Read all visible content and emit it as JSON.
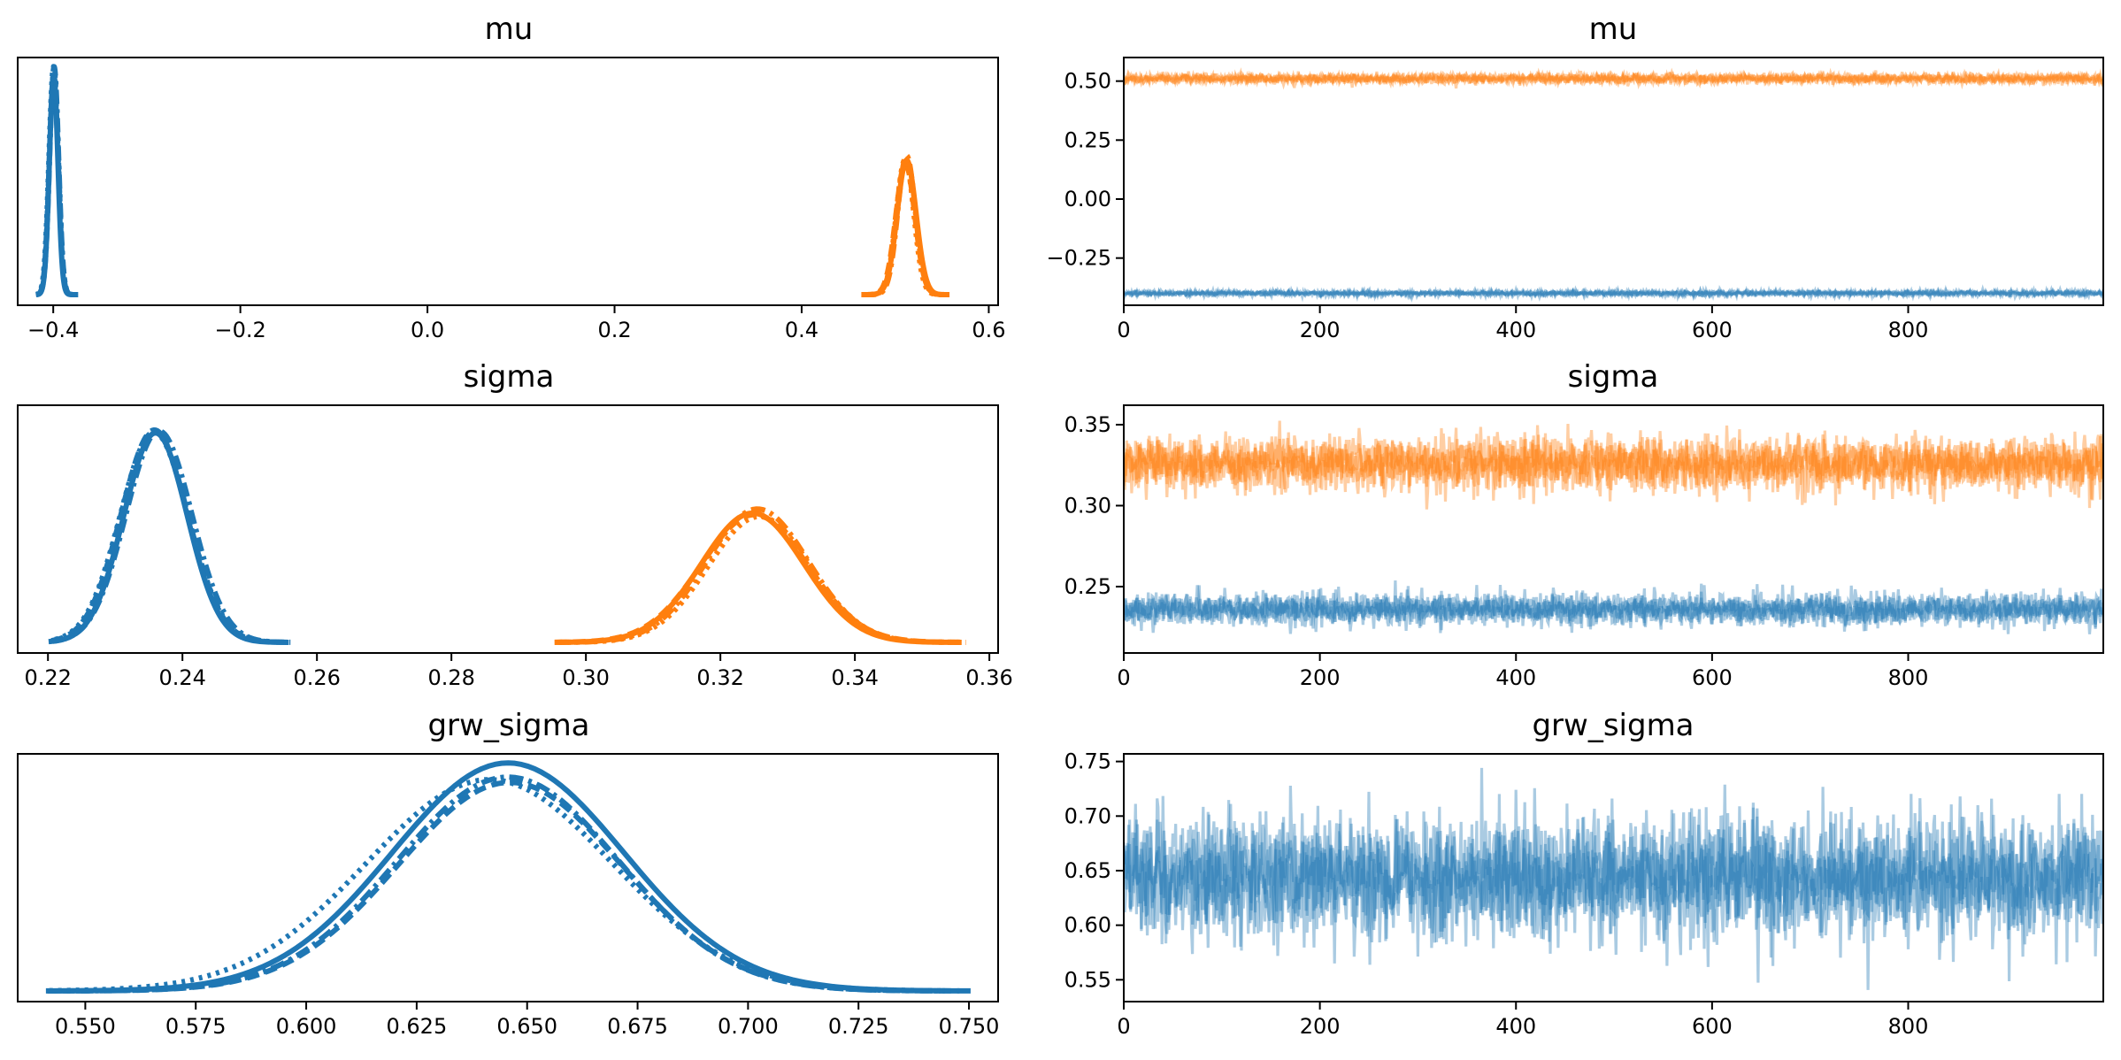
{
  "colors": {
    "chain_blue": "#1f77b4",
    "chain_orange": "#ff7f0e"
  },
  "chart_data": [
    {
      "type": "line",
      "subtype": "kde",
      "title": "mu",
      "xlim": [
        -0.438,
        0.61
      ],
      "xticks": [
        -0.4,
        -0.2,
        0.0,
        0.2,
        0.4,
        0.6
      ],
      "xtick_labels": [
        "−0.4",
        "−0.2",
        "0.0",
        "0.2",
        "0.4",
        "0.6"
      ],
      "yticks": "none",
      "series": [
        {
          "color": "#1f77b4",
          "center": -0.399,
          "sd": 0.0048,
          "range": [
            -0.418,
            -0.374
          ],
          "peak": 1.0
        },
        {
          "color": "#ff7f0e",
          "center": 0.511,
          "sd": 0.0098,
          "range": [
            0.465,
            0.557
          ],
          "peak": 0.62
        }
      ]
    },
    {
      "type": "line",
      "subtype": "trace",
      "title": "mu",
      "xlim": [
        0,
        999
      ],
      "ylim": [
        -0.45,
        0.6
      ],
      "xticks": [
        0,
        200,
        400,
        600,
        800
      ],
      "xtick_labels": [
        "0",
        "200",
        "400",
        "600",
        "800"
      ],
      "yticks": [
        0.5,
        0.25,
        0.0,
        -0.25
      ],
      "ytick_labels": [
        "0.50",
        "0.25",
        "0.00",
        "−0.25"
      ],
      "series": [
        {
          "color": "#ff7f0e",
          "mean": 0.511,
          "sd": 0.01
        },
        {
          "color": "#1f77b4",
          "mean": -0.399,
          "sd": 0.005
        }
      ]
    },
    {
      "type": "line",
      "subtype": "kde",
      "title": "sigma",
      "xlim": [
        0.2155,
        0.3613
      ],
      "xticks": [
        0.22,
        0.24,
        0.26,
        0.28,
        0.3,
        0.32,
        0.34,
        0.36
      ],
      "xtick_labels": [
        "0.22",
        "0.24",
        "0.26",
        "0.28",
        "0.30",
        "0.32",
        "0.34",
        "0.36"
      ],
      "yticks": "none",
      "series": [
        {
          "color": "#1f77b4",
          "center": 0.236,
          "sd": 0.0047,
          "range": [
            0.2205,
            0.2555
          ],
          "peak": 1.0
        },
        {
          "color": "#ff7f0e",
          "center": 0.3255,
          "sd": 0.0078,
          "range": [
            0.2965,
            0.3555
          ],
          "peak": 0.6
        }
      ]
    },
    {
      "type": "line",
      "subtype": "trace",
      "title": "sigma",
      "xlim": [
        0,
        999
      ],
      "ylim": [
        0.209,
        0.362
      ],
      "xticks": [
        0,
        200,
        400,
        600,
        800
      ],
      "xtick_labels": [
        "0",
        "200",
        "400",
        "600",
        "800"
      ],
      "yticks": [
        0.35,
        0.3,
        0.25
      ],
      "ytick_labels": [
        "0.35",
        "0.30",
        "0.25"
      ],
      "series": [
        {
          "color": "#ff7f0e",
          "mean": 0.326,
          "sd": 0.008
        },
        {
          "color": "#1f77b4",
          "mean": 0.236,
          "sd": 0.0047
        }
      ]
    },
    {
      "type": "line",
      "subtype": "kde",
      "title": "grw_sigma",
      "xlim": [
        0.5347,
        0.7566
      ],
      "xticks": [
        0.55,
        0.575,
        0.6,
        0.625,
        0.65,
        0.675,
        0.7,
        0.725,
        0.75
      ],
      "xtick_labels": [
        "0.550",
        "0.575",
        "0.600",
        "0.625",
        "0.650",
        "0.675",
        "0.700",
        "0.725",
        "0.750"
      ],
      "yticks": "none",
      "series": [
        {
          "color": "#1f77b4",
          "center": 0.644,
          "sd": 0.026,
          "range": [
            0.5445,
            0.7475
          ],
          "peak": 1.0
        }
      ]
    },
    {
      "type": "line",
      "subtype": "trace",
      "title": "grw_sigma",
      "xlim": [
        0,
        999
      ],
      "ylim": [
        0.53,
        0.757
      ],
      "xticks": [
        0,
        200,
        400,
        600,
        800
      ],
      "xtick_labels": [
        "0",
        "200",
        "400",
        "600",
        "800"
      ],
      "yticks": [
        0.75,
        0.7,
        0.65,
        0.6,
        0.55
      ],
      "ytick_labels": [
        "0.75",
        "0.70",
        "0.65",
        "0.60",
        "0.55"
      ],
      "series": [
        {
          "color": "#1f77b4",
          "mean": 0.644,
          "sd": 0.026
        }
      ]
    }
  ]
}
